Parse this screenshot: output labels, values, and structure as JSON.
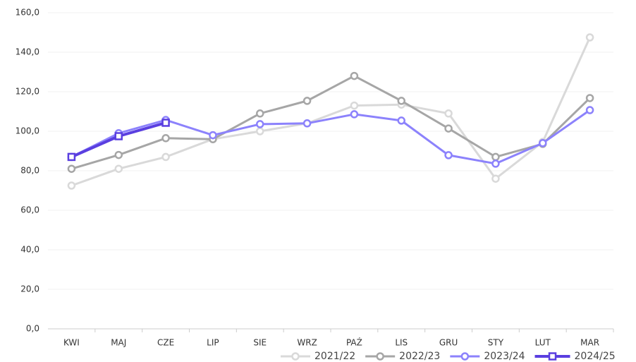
{
  "chart_data": {
    "type": "line",
    "categories": [
      "KWI",
      "MAJ",
      "CZE",
      "LIP",
      "SIE",
      "WRZ",
      "PAŹ",
      "LIS",
      "GRU",
      "STY",
      "LUT",
      "MAR"
    ],
    "series": [
      {
        "name": "2021/22",
        "color": "#d9d9d9",
        "marker": "circle",
        "values": [
          72.5,
          81,
          87,
          96,
          100,
          104,
          113,
          113.5,
          109,
          76,
          94.6,
          147.5
        ]
      },
      {
        "name": "2022/23",
        "color": "#a6a6a6",
        "marker": "circle",
        "values": [
          81,
          88,
          96.5,
          96,
          109,
          115.4,
          128,
          115.4,
          101.4,
          87,
          93.6,
          116.8
        ]
      },
      {
        "name": "2023/24",
        "color": "#8c82fc",
        "marker": "circle",
        "values": [
          87,
          99,
          105.7,
          98,
          103.6,
          104,
          108.6,
          105.4,
          87.9,
          83.6,
          94,
          110.7
        ]
      },
      {
        "name": "2024/25",
        "color": "#5a3fe0",
        "marker": "square",
        "values": [
          87,
          97.5,
          104.3,
          null,
          null,
          null,
          null,
          null,
          null,
          null,
          null,
          null
        ]
      }
    ],
    "ylim": [
      0,
      160
    ],
    "yticks": [
      {
        "value": 0,
        "label": "0,0"
      },
      {
        "value": 20,
        "label": "20,0"
      },
      {
        "value": 40,
        "label": "40,0"
      },
      {
        "value": 60,
        "label": "60,0"
      },
      {
        "value": 80,
        "label": "80,0"
      },
      {
        "value": 100,
        "label": "100,0"
      },
      {
        "value": 120,
        "label": "120,0"
      },
      {
        "value": 140,
        "label": "140,0"
      },
      {
        "value": 160,
        "label": "160,0"
      }
    ],
    "grid": true,
    "legend": "bottom-right"
  }
}
